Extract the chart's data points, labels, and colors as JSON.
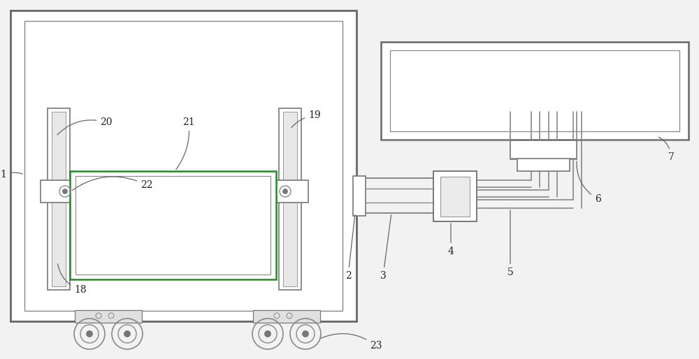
{
  "bg_color": "#f2f2f2",
  "lc": "#888888",
  "lc_dark": "#555555",
  "green": "#228B22",
  "fig_w": 10.0,
  "fig_h": 5.14,
  "dpi": 100
}
